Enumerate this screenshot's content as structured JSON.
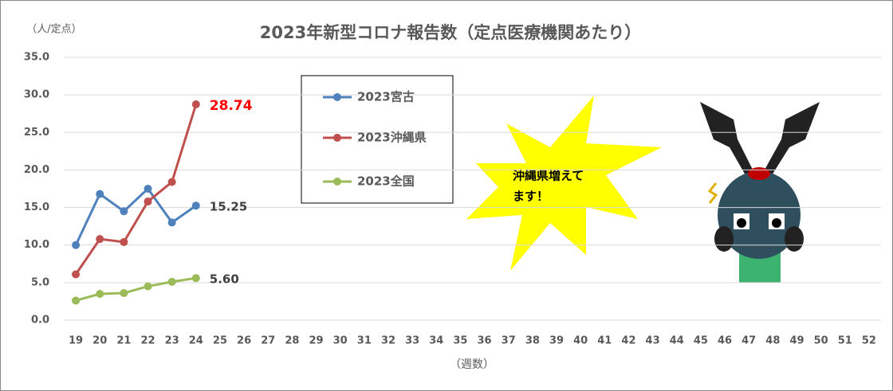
{
  "chart_data": {
    "type": "line",
    "title": "2023年新型コロナ報告数（定点医療機関あたり）",
    "y_label": "（人/定点）",
    "x_label": "（週数）",
    "annotation": [
      "沖縄県増えて",
      "ます！"
    ],
    "categories": [
      "19",
      "20",
      "21",
      "22",
      "23",
      "24",
      "25",
      "26",
      "27",
      "28",
      "29",
      "30",
      "31",
      "32",
      "33",
      "34",
      "35",
      "36",
      "37",
      "38",
      "39",
      "40",
      "41",
      "42",
      "43",
      "44",
      "45",
      "46",
      "47",
      "48",
      "49",
      "50",
      "51",
      "52"
    ],
    "series": [
      {
        "name": "2023宮古",
        "color": "#4f81bd",
        "label_color": "#404040",
        "values": [
          10.0,
          16.8,
          14.5,
          17.5,
          13.0,
          15.25,
          null,
          null,
          null,
          null,
          null,
          null,
          null,
          null,
          null,
          null,
          null,
          null,
          null,
          null,
          null,
          null,
          null,
          null,
          null,
          null,
          null,
          null,
          null,
          null,
          null,
          null,
          null,
          null
        ],
        "value_labels": [
          null,
          null,
          null,
          null,
          null,
          "15.25"
        ]
      },
      {
        "name": "2023沖縄県",
        "color": "#c0504d",
        "label_color": "#ff0000",
        "values": [
          6.1,
          10.8,
          10.4,
          15.8,
          18.4,
          28.74,
          null,
          null,
          null,
          null,
          null,
          null,
          null,
          null,
          null,
          null,
          null,
          null,
          null,
          null,
          null,
          null,
          null,
          null,
          null,
          null,
          null,
          null,
          null,
          null,
          null,
          null,
          null,
          null
        ],
        "value_labels": [
          null,
          null,
          null,
          null,
          null,
          "28.74"
        ]
      },
      {
        "name": "2023全国",
        "color": "#9bbb59",
        "label_color": "#404040",
        "values": [
          2.6,
          3.5,
          3.6,
          4.5,
          5.1,
          5.6,
          null,
          null,
          null,
          null,
          null,
          null,
          null,
          null,
          null,
          null,
          null,
          null,
          null,
          null,
          null,
          null,
          null,
          null,
          null,
          null,
          null,
          null,
          null,
          null,
          null,
          null,
          null,
          null
        ],
        "value_labels": [
          null,
          null,
          null,
          null,
          null,
          "5.60"
        ]
      }
    ],
    "ylim": [
      0,
      35
    ],
    "yticks": [
      {
        "value": 0,
        "label": "0.0"
      },
      {
        "value": 5,
        "label": "5.0"
      },
      {
        "value": 10,
        "label": "10.0"
      },
      {
        "value": 15,
        "label": "15.0"
      },
      {
        "value": 20,
        "label": "20.0"
      },
      {
        "value": 25,
        "label": "25.0"
      },
      {
        "value": 30,
        "label": "30.0"
      },
      {
        "value": 35,
        "label": "35.0"
      }
    ],
    "grid": true
  }
}
